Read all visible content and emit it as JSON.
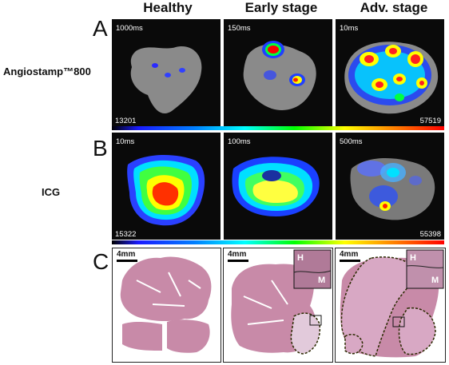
{
  "columns": [
    "Healthy",
    "Early stage",
    "Adv. stage"
  ],
  "rows": {
    "A": {
      "letter": "A",
      "label": "Angiostamp™800",
      "times": [
        "1000ms",
        "150ms",
        "10ms"
      ],
      "min": "13201",
      "max": "57519"
    },
    "B": {
      "letter": "B",
      "label": "ICG",
      "times": [
        "10ms",
        "100ms",
        "500ms"
      ],
      "min": "15322",
      "max": "55398"
    },
    "C": {
      "letter": "C",
      "scale": "4mm",
      "inset_labels": [
        "H",
        "M"
      ]
    }
  }
}
